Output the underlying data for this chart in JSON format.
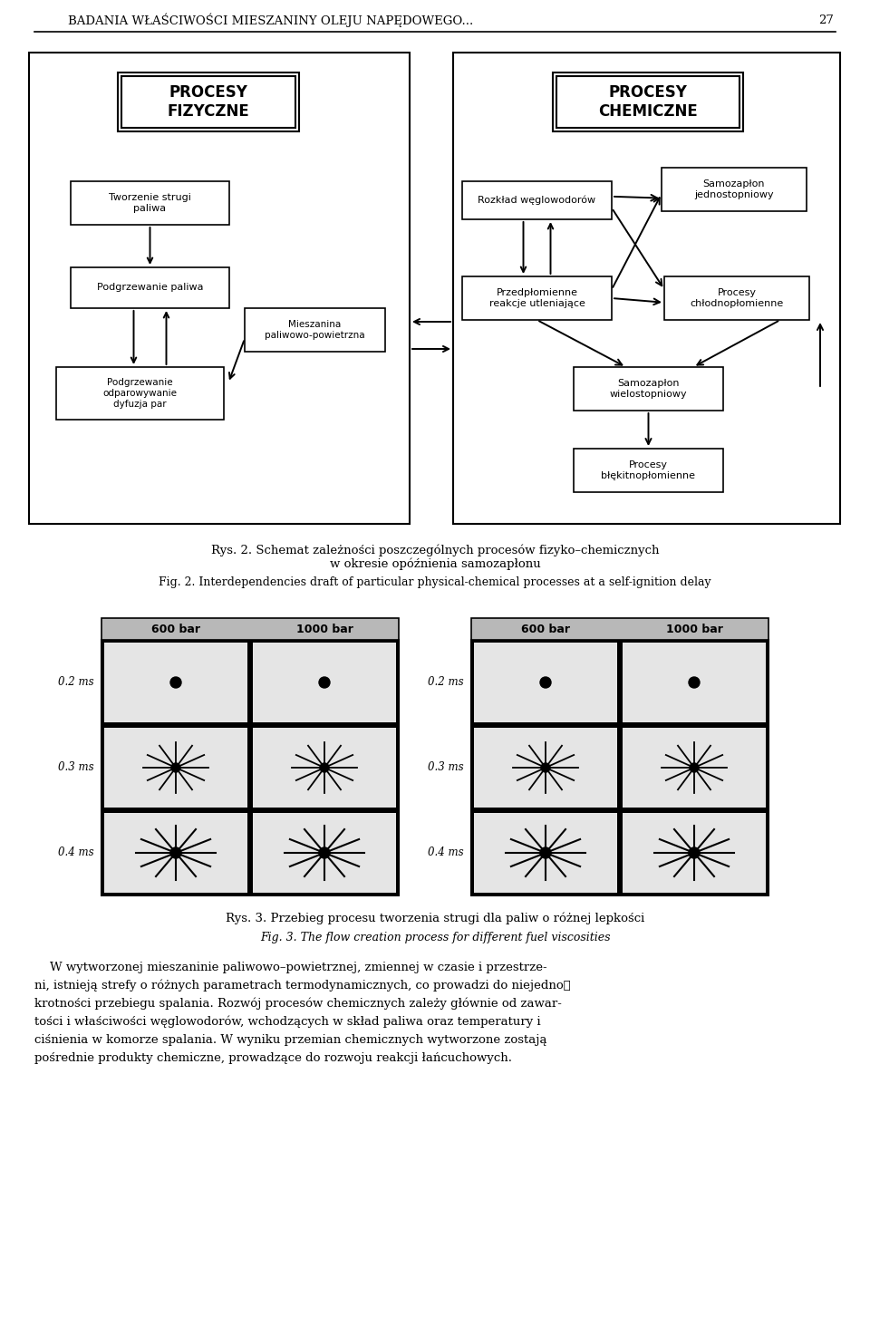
{
  "page_title": "BADANIA WŁAŚCIWOŚCI MIESZANINY OLEJU NAPĘDOWEGO...",
  "page_number": "27",
  "diagram_caption_pl": "Rys. 2. Schemat zależności poszczególnych procesów fizyko–chemicznych\nw okresie opóźnienia samozapłonu",
  "diagram_caption_en": "Fig. 2. Interdependencies draft of particular physical-chemical processes at a self-ignition delay",
  "photo_caption_pl": "Rys. 3. Przebieg procesu tworzenia strugi dla paliw o różnej lepkości",
  "photo_caption_en": "Fig. 3. The flow creation process for different fuel viscosities",
  "body_lines": [
    "    W wytworzonej mieszaninie paliwowo–powietrznej, zmiennej w czasie i przestrze-",
    "ni, istnieją strefy o różnych parametrach termodynamicznych, co prowadzi do niejednoَ",
    "krotności przebiegu spalania. Rozwój procesów chemicznych zależy głównie od zawar-",
    "tości i właściwości węglowodorów, wchodzących w skład paliwa oraz temperatury i",
    "ciśnienia w komorze spalania. W wyniku przemian chemicznych wytworzone zostają",
    "pośrednie produkty chemiczne, prowadzące do rozwoju reakcji łańcuchowych."
  ],
  "background": "#ffffff"
}
